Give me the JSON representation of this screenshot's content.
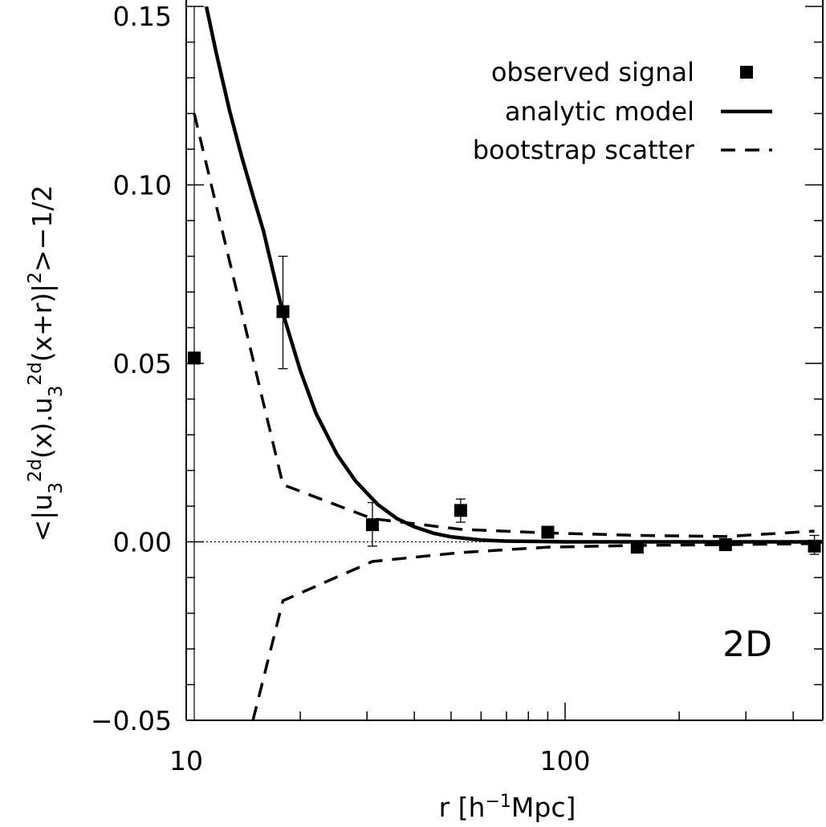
{
  "chart_data": {
    "type": "scatter",
    "xscale": "log",
    "xlim": [
      10,
      500
    ],
    "ylim": [
      -0.05,
      0.15
    ],
    "grid": false,
    "legend_position": "top-right",
    "xlabel": {
      "base": "r [h",
      "sup": "−1",
      "tail": "Mpc]"
    },
    "ylabel": {
      "parts": [
        {
          "t": "<|u",
          "k": "n"
        },
        {
          "t": "3",
          "k": "sub"
        },
        {
          "t": "2d",
          "k": "sup"
        },
        {
          "t": "(x).u",
          "k": "n"
        },
        {
          "t": "3",
          "k": "sub"
        },
        {
          "t": "2d",
          "k": "sup"
        },
        {
          "t": "(x+r)|",
          "k": "n"
        },
        {
          "t": "2",
          "k": "sup"
        },
        {
          "t": ">−1/2",
          "k": "n"
        }
      ]
    },
    "x_ticks": [
      {
        "value": 10,
        "label": "10"
      },
      {
        "value": 100,
        "label": "100"
      }
    ],
    "y_ticks": [
      {
        "value": -0.05,
        "label": "−0.05"
      },
      {
        "value": 0.0,
        "label": "0.00"
      },
      {
        "value": 0.05,
        "label": "0.05"
      },
      {
        "value": 0.1,
        "label": "0.10"
      },
      {
        "value": 0.15,
        "label": "0.15"
      }
    ],
    "panel_label": "2D",
    "zero_line": 0,
    "vertical_line_x": 10.5,
    "legend": [
      {
        "label": "observed signal",
        "style": "square"
      },
      {
        "label": "analytic model",
        "style": "solid"
      },
      {
        "label": "bootstrap scatter",
        "style": "dashed"
      }
    ],
    "series": [
      {
        "name": "observed signal",
        "style": "square",
        "x": [
          10.5,
          18,
          31,
          53,
          90,
          155,
          265,
          455
        ],
        "y": [
          0.0515,
          0.0645,
          0.0048,
          0.0088,
          0.0027,
          -0.0015,
          -0.0008,
          -0.0012
        ],
        "yerr_low": [
          null,
          0.0485,
          -0.0012,
          0.0055,
          0.0015,
          -0.0028,
          -0.0018,
          -0.0035
        ],
        "yerr_high": [
          null,
          0.08,
          0.011,
          0.012,
          0.0038,
          -0.0005,
          0.0002,
          0.0018
        ]
      },
      {
        "name": "analytic model",
        "style": "solid",
        "x": [
          11.3,
          12,
          13,
          14,
          15,
          16,
          18,
          20,
          22,
          25,
          28,
          32,
          36,
          40,
          45,
          50,
          60,
          70,
          85,
          100,
          150,
          200,
          300,
          500
        ],
        "y": [
          0.15,
          0.137,
          0.121,
          0.108,
          0.097,
          0.087,
          0.064,
          0.048,
          0.036,
          0.0245,
          0.017,
          0.0105,
          0.0065,
          0.0042,
          0.0024,
          0.0014,
          0.0005,
          0.0002,
          0.0001,
          0.0,
          0.0,
          0.0,
          0.0,
          0.0
        ]
      },
      {
        "name": "bootstrap scatter upper",
        "style": "dashed",
        "x": [
          10.5,
          18,
          31,
          53,
          90,
          155,
          265,
          455
        ],
        "y": [
          0.12,
          0.016,
          0.0065,
          0.0035,
          0.0025,
          0.0018,
          0.0015,
          0.003
        ]
      },
      {
        "name": "bootstrap scatter lower",
        "style": "dashed",
        "x": [
          15,
          18,
          31,
          53,
          90,
          155,
          265,
          455
        ],
        "y": [
          -0.05,
          -0.0165,
          -0.0055,
          -0.003,
          -0.0015,
          -0.001,
          -0.0008,
          -0.0005
        ]
      }
    ]
  }
}
